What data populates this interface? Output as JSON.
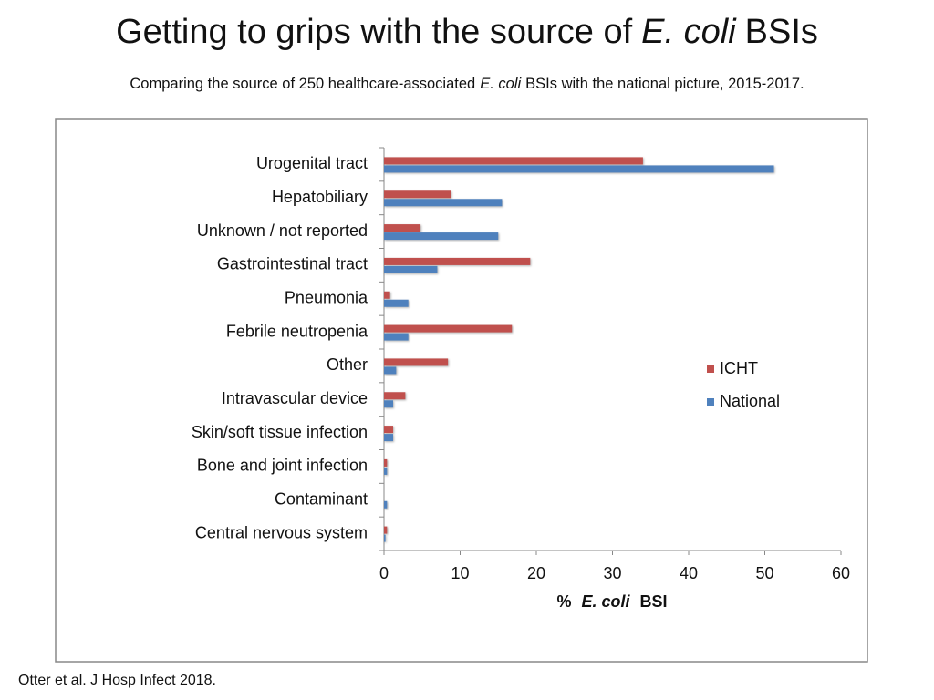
{
  "chart_data": {
    "type": "hbar",
    "title": [
      "Getting to grips with the source of",
      "E. coli",
      "BSIs"
    ],
    "subtitle": [
      "Comparing the source of 250 healthcare-associated",
      "E. coli",
      "BSIs with the national picture, 2015-2017."
    ],
    "xlabel": [
      "%",
      "E. coli",
      "BSI"
    ],
    "footnote": "Otter et al. J Hosp Infect 2018.",
    "categories": [
      "Urogenital tract",
      "Hepatobiliary",
      "Unknown / not reported",
      "Gastrointestinal tract",
      "Pneumonia",
      "Febrile neutropenia",
      "Other",
      "Intravascular device",
      "Skin/soft tissue infection",
      "Bone and joint infection",
      "Contaminant",
      "Central nervous system"
    ],
    "series": [
      {
        "name": "ICHT",
        "color": "#c0504d",
        "values": [
          34,
          8.8,
          4.8,
          19.2,
          0.8,
          16.8,
          8.4,
          2.8,
          1.2,
          0.4,
          0,
          0.4
        ]
      },
      {
        "name": "National",
        "color": "#4f81bd",
        "values": [
          51.2,
          15.5,
          15,
          7,
          3.2,
          3.2,
          1.6,
          1.2,
          1.2,
          0.4,
          0.4,
          0.2
        ]
      }
    ],
    "xlim": [
      0,
      60
    ],
    "xticks": [
      0,
      10,
      20,
      30,
      40,
      50,
      60
    ],
    "legend": "right"
  }
}
